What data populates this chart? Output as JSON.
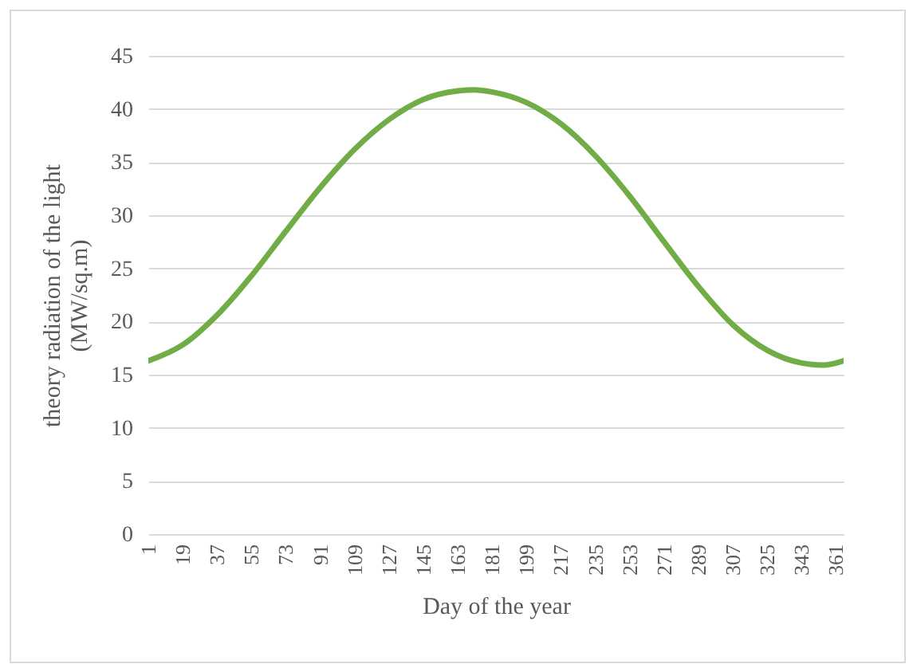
{
  "chart_data": {
    "type": "line",
    "xlabel": "Day of the year",
    "ylabel": "theory radiation of the light (MW/sq.m)",
    "x": [
      1,
      19,
      37,
      55,
      73,
      91,
      109,
      127,
      145,
      163,
      172,
      181,
      199,
      217,
      235,
      253,
      271,
      289,
      307,
      325,
      343,
      355,
      365
    ],
    "series": [
      {
        "color": "#70ad47",
        "values": [
          16.3,
          17.8,
          20.6,
          24.3,
          28.5,
          32.6,
          36.2,
          39.0,
          40.9,
          41.7,
          41.8,
          41.6,
          40.6,
          38.6,
          35.6,
          31.8,
          27.5,
          23.3,
          19.7,
          17.3,
          16.1,
          15.9,
          16.3
        ]
      }
    ],
    "xlim": [
      1,
      365
    ],
    "xticks": [
      1,
      19,
      37,
      55,
      73,
      91,
      109,
      127,
      145,
      163,
      181,
      199,
      217,
      235,
      253,
      271,
      289,
      307,
      325,
      343,
      361
    ],
    "ylim": [
      0,
      45
    ],
    "yticks": [
      0,
      5,
      10,
      15,
      20,
      25,
      30,
      35,
      40,
      45
    ],
    "grid": "y",
    "marker": "none",
    "line_style": "solid"
  }
}
